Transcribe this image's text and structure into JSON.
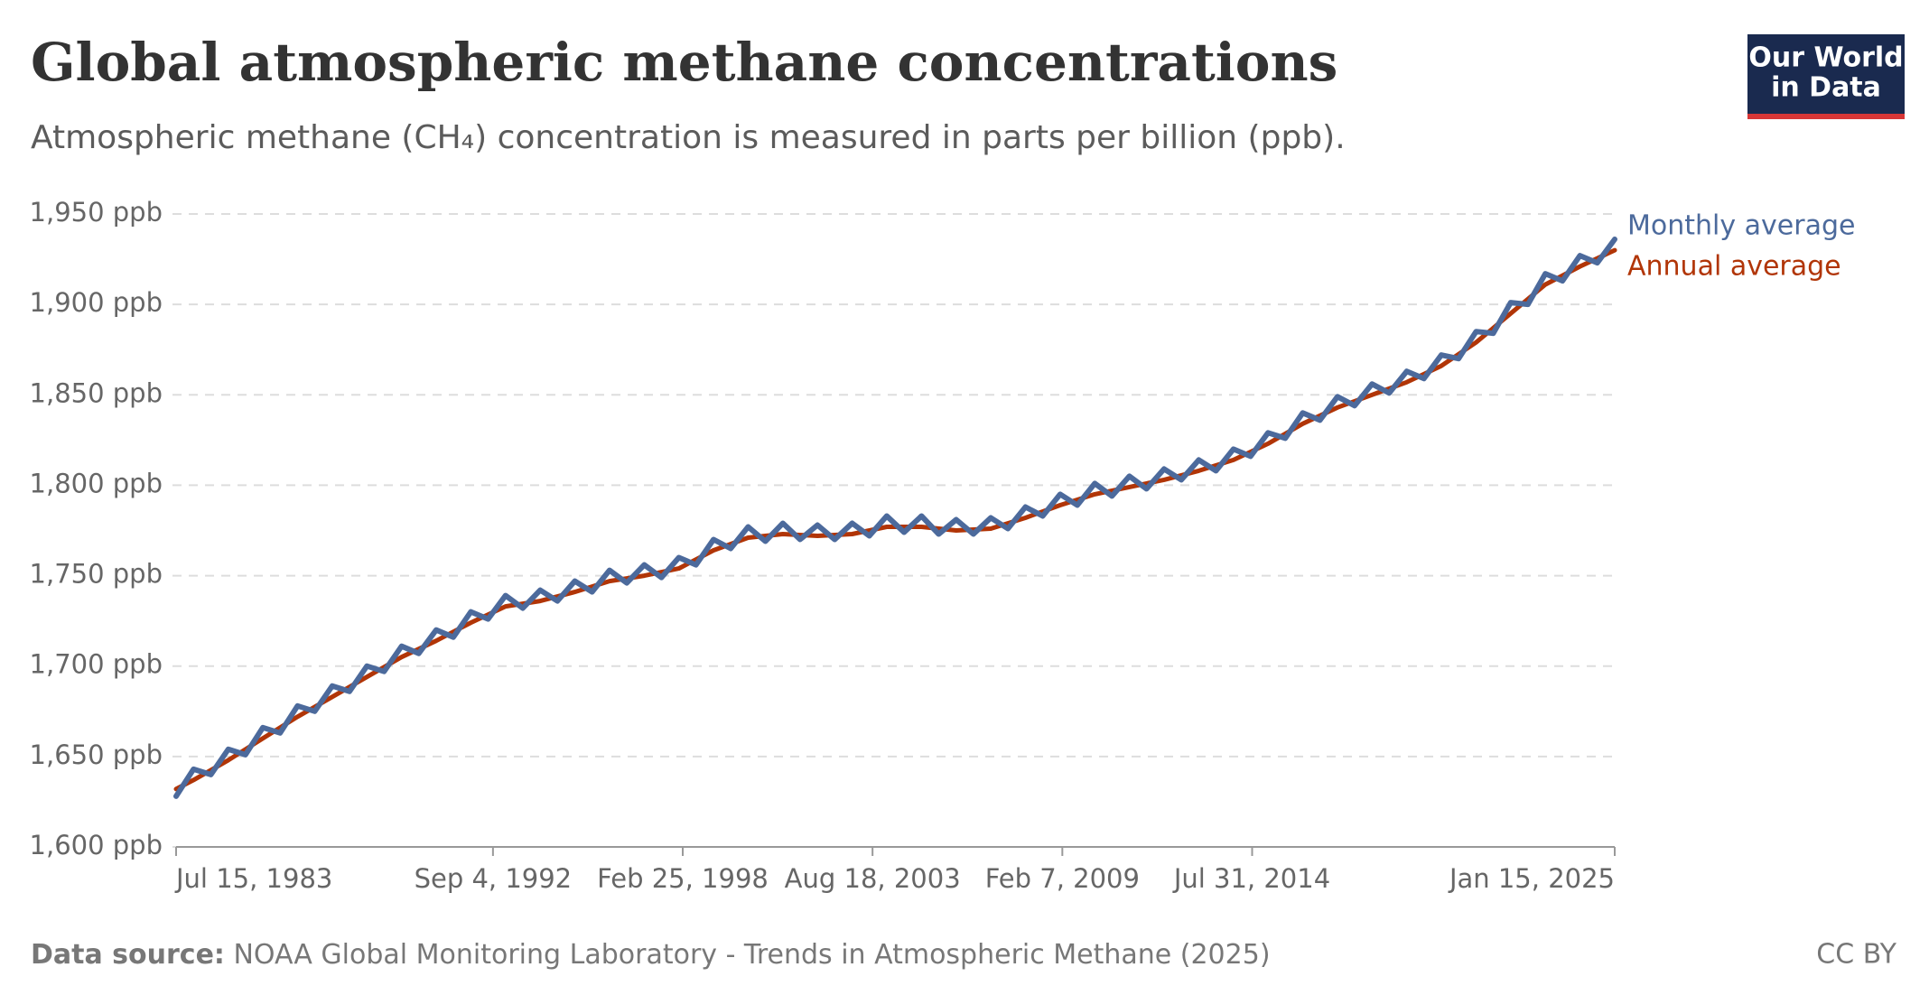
{
  "chart_data": {
    "type": "line",
    "title": "Global atmospheric methane concentrations",
    "subtitle": "Atmospheric methane (CH₄) concentration is measured in parts per billion (ppb).",
    "logo": [
      "Our World",
      "in Data"
    ],
    "source_label": "Data source:",
    "source": "NOAA Global Monitoring Laboratory - Trends in Atmospheric Methane (2025)",
    "license": "CC BY",
    "grid": true,
    "xlim": [
      "1983-07-15",
      "2025-01-15"
    ],
    "xticks": [
      {
        "value": "1983-07-15",
        "label": "Jul 15, 1983"
      },
      {
        "value": "1992-09-04",
        "label": "Sep 4, 1992"
      },
      {
        "value": "1998-02-25",
        "label": "Feb 25, 1998"
      },
      {
        "value": "2003-08-18",
        "label": "Aug 18, 2003"
      },
      {
        "value": "2009-02-07",
        "label": "Feb 7, 2009"
      },
      {
        "value": "2014-07-31",
        "label": "Jul 31, 2014"
      },
      {
        "value": "2025-01-15",
        "label": "Jan 15, 2025"
      }
    ],
    "ylim": [
      1600,
      1950
    ],
    "yticks": [
      {
        "value": 1600,
        "label": "1,600 ppb"
      },
      {
        "value": 1650,
        "label": "1,650 ppb"
      },
      {
        "value": 1700,
        "label": "1,700 ppb"
      },
      {
        "value": 1750,
        "label": "1,750 ppb"
      },
      {
        "value": 1800,
        "label": "1,800 ppb"
      },
      {
        "value": 1850,
        "label": "1,850 ppb"
      },
      {
        "value": 1900,
        "label": "1,900 ppb"
      },
      {
        "value": 1950,
        "label": "1,950 ppb"
      }
    ],
    "series": [
      {
        "name": "Annual average",
        "color": "#b13507",
        "x": [
          "1983-07-15",
          "1984-01-15",
          "1985-01-15",
          "1986-01-15",
          "1987-01-15",
          "1988-01-15",
          "1989-01-15",
          "1990-01-15",
          "1991-01-15",
          "1992-01-15",
          "1993-01-15",
          "1994-01-15",
          "1995-01-15",
          "1996-01-15",
          "1997-01-15",
          "1998-01-15",
          "1999-01-15",
          "2000-01-15",
          "2001-01-15",
          "2002-01-15",
          "2003-01-15",
          "2004-01-15",
          "2005-01-15",
          "2006-01-15",
          "2007-01-15",
          "2008-01-15",
          "2009-01-15",
          "2010-01-15",
          "2011-01-15",
          "2012-01-15",
          "2013-01-15",
          "2014-01-15",
          "2015-01-15",
          "2016-01-15",
          "2017-01-15",
          "2018-01-15",
          "2019-01-15",
          "2020-01-15",
          "2021-01-15",
          "2022-01-15",
          "2023-01-15",
          "2024-01-15",
          "2025-01-15"
        ],
        "values": [
          1632,
          1637,
          1648,
          1660,
          1672,
          1683,
          1694,
          1705,
          1714,
          1724,
          1733,
          1736,
          1741,
          1747,
          1750,
          1754,
          1764,
          1771,
          1773,
          1772,
          1773,
          1777,
          1777,
          1775,
          1776,
          1782,
          1789,
          1795,
          1799,
          1803,
          1808,
          1814,
          1823,
          1834,
          1843,
          1850,
          1857,
          1866,
          1879,
          1895,
          1911,
          1921,
          1930
        ]
      },
      {
        "name": "Monthly average",
        "color": "#4c6a9c",
        "x": [
          "1983-07-15",
          "1984-01-15",
          "1984-07-15",
          "1985-01-15",
          "1985-07-15",
          "1986-01-15",
          "1986-07-15",
          "1987-01-15",
          "1987-07-15",
          "1988-01-15",
          "1988-07-15",
          "1989-01-15",
          "1989-07-15",
          "1990-01-15",
          "1990-07-15",
          "1991-01-15",
          "1991-07-15",
          "1992-01-15",
          "1992-07-15",
          "1993-01-15",
          "1993-07-15",
          "1994-01-15",
          "1994-07-15",
          "1995-01-15",
          "1995-07-15",
          "1996-01-15",
          "1996-07-15",
          "1997-01-15",
          "1997-07-15",
          "1998-01-15",
          "1998-07-15",
          "1999-01-15",
          "1999-07-15",
          "2000-01-15",
          "2000-07-15",
          "2001-01-15",
          "2001-07-15",
          "2002-01-15",
          "2002-07-15",
          "2003-01-15",
          "2003-07-15",
          "2004-01-15",
          "2004-07-15",
          "2005-01-15",
          "2005-07-15",
          "2006-01-15",
          "2006-07-15",
          "2007-01-15",
          "2007-07-15",
          "2008-01-15",
          "2008-07-15",
          "2009-01-15",
          "2009-07-15",
          "2010-01-15",
          "2010-07-15",
          "2011-01-15",
          "2011-07-15",
          "2012-01-15",
          "2012-07-15",
          "2013-01-15",
          "2013-07-15",
          "2014-01-15",
          "2014-07-15",
          "2015-01-15",
          "2015-07-15",
          "2016-01-15",
          "2016-07-15",
          "2017-01-15",
          "2017-07-15",
          "2018-01-15",
          "2018-07-15",
          "2019-01-15",
          "2019-07-15",
          "2020-01-15",
          "2020-07-15",
          "2021-01-15",
          "2021-07-15",
          "2022-01-15",
          "2022-07-15",
          "2023-01-15",
          "2023-07-15",
          "2024-01-15",
          "2024-07-15",
          "2025-01-15"
        ],
        "values": [
          1628,
          1643,
          1640,
          1654,
          1651,
          1666,
          1663,
          1678,
          1675,
          1689,
          1686,
          1700,
          1697,
          1711,
          1707,
          1720,
          1716,
          1730,
          1726,
          1739,
          1732,
          1742,
          1736,
          1747,
          1741,
          1753,
          1746,
          1756,
          1749,
          1760,
          1756,
          1770,
          1765,
          1777,
          1769,
          1779,
          1770,
          1778,
          1770,
          1779,
          1772,
          1783,
          1774,
          1783,
          1773,
          1781,
          1773,
          1782,
          1776,
          1788,
          1783,
          1795,
          1789,
          1801,
          1794,
          1805,
          1798,
          1809,
          1803,
          1814,
          1808,
          1820,
          1816,
          1829,
          1826,
          1840,
          1836,
          1849,
          1844,
          1856,
          1851,
          1863,
          1859,
          1872,
          1870,
          1885,
          1884,
          1901,
          1900,
          1917,
          1913,
          1927,
          1923,
          1936
        ]
      }
    ]
  }
}
